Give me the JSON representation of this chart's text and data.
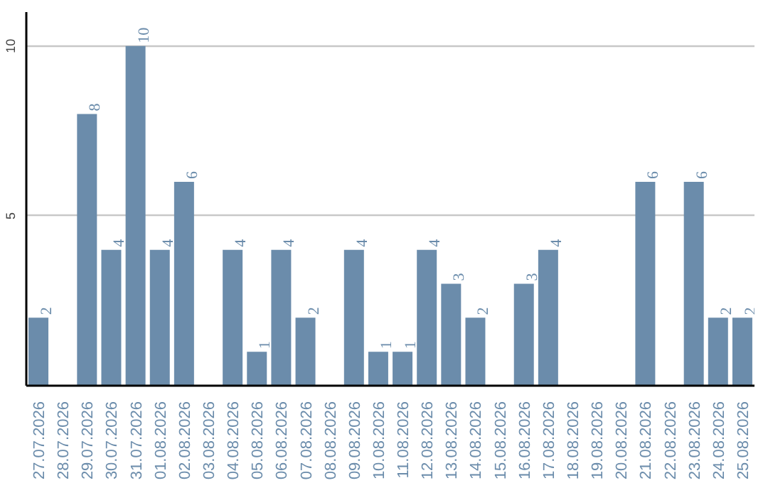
{
  "chart_data": {
    "type": "bar",
    "categories": [
      "27.07.2026",
      "28.07.2026",
      "29.07.2026",
      "30.07.2026",
      "31.07.2026",
      "01.08.2026",
      "02.08.2026",
      "03.08.2026",
      "04.08.2026",
      "05.08.2026",
      "06.08.2026",
      "07.08.2026",
      "08.08.2026",
      "09.08.2026",
      "10.08.2026",
      "11.08.2026",
      "12.08.2026",
      "13.08.2026",
      "14.08.2026",
      "15.08.2026",
      "16.08.2026",
      "17.08.2026",
      "18.08.2026",
      "19.08.2026",
      "20.08.2026",
      "21.08.2026",
      "22.08.2026",
      "23.08.2026",
      "24.08.2026",
      "25.08.2026"
    ],
    "values": [
      2,
      0,
      8,
      4,
      10,
      4,
      6,
      0,
      4,
      1,
      4,
      2,
      0,
      4,
      1,
      1,
      4,
      3,
      2,
      0,
      3,
      4,
      0,
      0,
      0,
      6,
      0,
      6,
      2,
      2
    ],
    "value_labels": [
      "2",
      null,
      "8",
      "4",
      "10",
      "4",
      "6",
      null,
      "4",
      "1",
      "4",
      "2",
      null,
      "4",
      "1",
      "1",
      "4",
      "3",
      "2",
      null,
      "3",
      "4",
      null,
      null,
      null,
      "6",
      null,
      "6",
      "2",
      "2"
    ],
    "color": "#6b8cab",
    "ylim": [
      0,
      11
    ],
    "yticks": [
      5,
      10
    ],
    "grid": "y"
  }
}
